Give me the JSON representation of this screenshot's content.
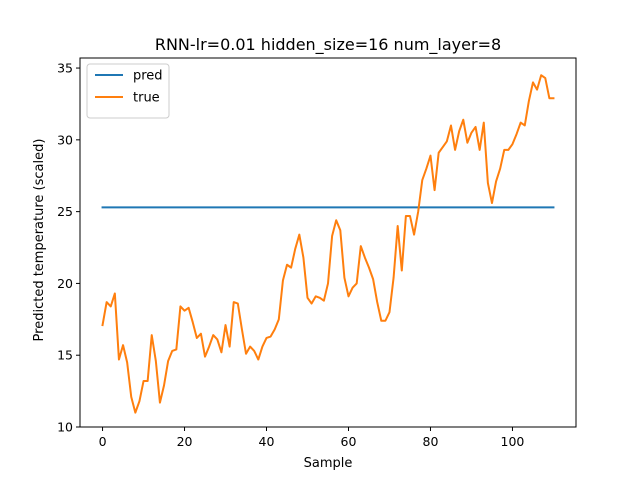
{
  "chart_data": {
    "type": "line",
    "title": "RNN-lr=0.01 hidden_size=16 num_layer=8",
    "xlabel": "Sample",
    "ylabel": "Predicted temperature (scaled)",
    "xlim": [
      -5.5,
      115.5
    ],
    "ylim": [
      10.0,
      35.7
    ],
    "xticks": [
      0,
      20,
      40,
      60,
      80,
      100
    ],
    "yticks": [
      10,
      15,
      20,
      25,
      30,
      35
    ],
    "grid": false,
    "legend_position": "top-left",
    "series": [
      {
        "name": "pred",
        "color": "#1f77b4",
        "x": [
          0,
          110
        ],
        "y": [
          25.3,
          25.3
        ]
      },
      {
        "name": "true",
        "color": "#ff7f0e",
        "x": [
          0,
          1,
          2,
          3,
          4,
          5,
          6,
          7,
          8,
          9,
          10,
          11,
          12,
          13,
          14,
          15,
          16,
          17,
          18,
          19,
          20,
          21,
          22,
          23,
          24,
          25,
          26,
          27,
          28,
          29,
          30,
          31,
          32,
          33,
          34,
          35,
          36,
          37,
          38,
          39,
          40,
          41,
          42,
          43,
          44,
          45,
          46,
          47,
          48,
          49,
          50,
          51,
          52,
          53,
          54,
          55,
          56,
          57,
          58,
          59,
          60,
          61,
          62,
          63,
          64,
          65,
          66,
          67,
          68,
          69,
          70,
          71,
          72,
          73,
          74,
          75,
          76,
          77,
          78,
          79,
          80,
          81,
          82,
          83,
          84,
          85,
          86,
          87,
          88,
          89,
          90,
          91,
          92,
          93,
          94,
          95,
          96,
          97,
          98,
          99,
          100,
          101,
          102,
          103,
          104,
          105,
          106,
          107,
          108,
          109,
          110
        ],
        "y": [
          17.1,
          18.7,
          18.4,
          19.3,
          14.7,
          15.7,
          14.5,
          12.1,
          11.0,
          11.8,
          13.2,
          13.2,
          16.4,
          14.6,
          11.7,
          12.9,
          14.6,
          15.3,
          15.4,
          18.4,
          18.1,
          18.3,
          17.3,
          16.2,
          16.5,
          14.9,
          15.6,
          16.4,
          16.1,
          15.2,
          17.1,
          15.6,
          18.7,
          18.6,
          16.8,
          15.1,
          15.6,
          15.3,
          14.7,
          15.6,
          16.2,
          16.3,
          16.8,
          17.5,
          20.2,
          21.3,
          21.1,
          22.4,
          23.4,
          21.8,
          19.0,
          18.6,
          19.1,
          19.0,
          18.8,
          20.0,
          23.3,
          24.4,
          23.7,
          20.4,
          19.1,
          19.7,
          20.0,
          22.6,
          21.8,
          21.1,
          20.3,
          18.7,
          17.4,
          17.4,
          18.0,
          20.4,
          24.0,
          20.9,
          24.7,
          24.7,
          23.4,
          25.0,
          27.2,
          28.0,
          28.9,
          26.5,
          29.1,
          29.5,
          29.9,
          31.0,
          29.3,
          30.6,
          31.4,
          29.8,
          30.5,
          30.9,
          29.3,
          31.2,
          27.0,
          25.6,
          27.1,
          28.0,
          29.3,
          29.3,
          29.7,
          30.4,
          31.2,
          31.0,
          32.7,
          34.0,
          33.5,
          34.5,
          34.3,
          32.9,
          32.9
        ]
      }
    ]
  }
}
